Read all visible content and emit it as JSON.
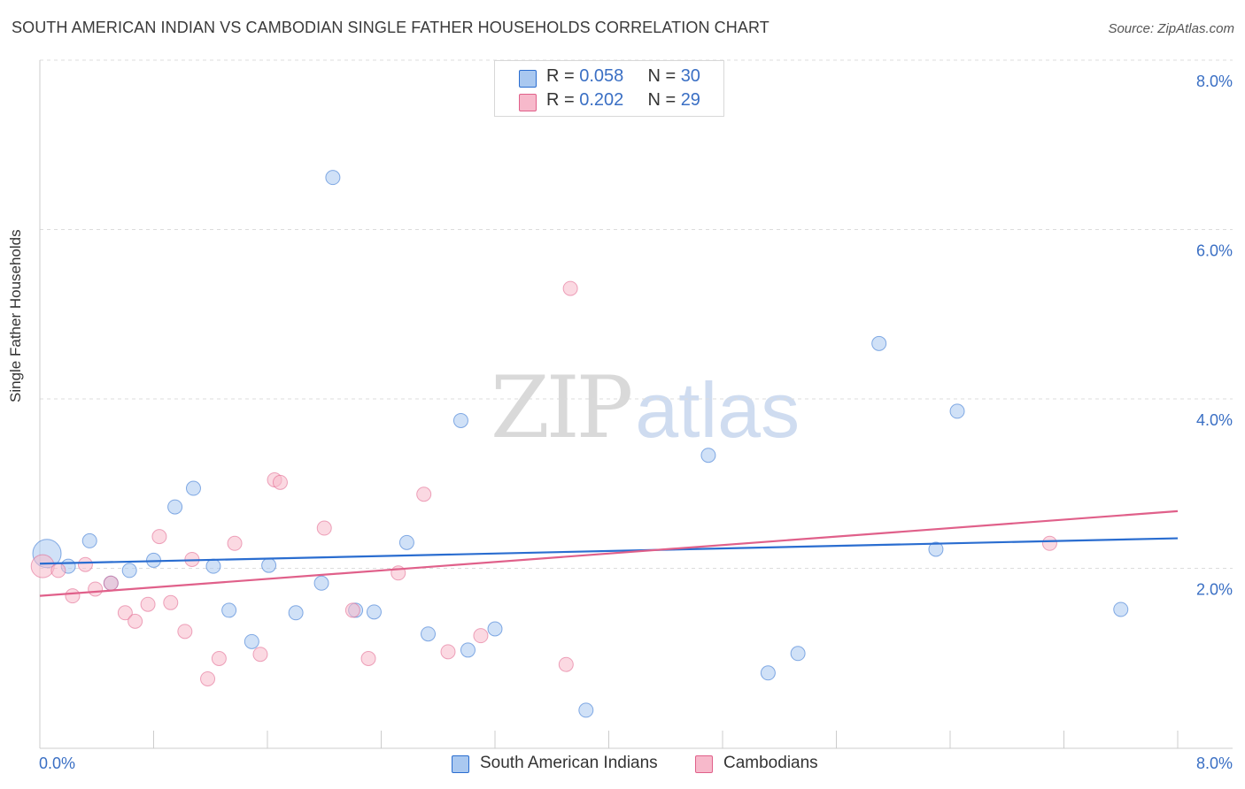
{
  "title": "SOUTH AMERICAN INDIAN VS CAMBODIAN SINGLE FATHER HOUSEHOLDS CORRELATION CHART",
  "source": "Source: ZipAtlas.com",
  "watermark": {
    "part1": "ZIP",
    "part2": "atlas"
  },
  "legend": {
    "rows": [
      {
        "r_label": "R = ",
        "r_value": "0.058",
        "n_label": "N = ",
        "n_value": "30",
        "color": "#a9c8f0"
      },
      {
        "r_label": "R = ",
        "r_value": "0.202",
        "n_label": "N = ",
        "n_value": "29",
        "color": "#f7b9cb"
      }
    ]
  },
  "chart_data": {
    "type": "scatter",
    "title": "SOUTH AMERICAN INDIAN VS CAMBODIAN SINGLE FATHER HOUSEHOLDS CORRELATION CHART",
    "xlabel": "",
    "ylabel": "Single Father Households",
    "xlim": [
      0,
      8
    ],
    "ylim": [
      0,
      8
    ],
    "x_tick_labels": [
      "0.0%",
      "8.0%"
    ],
    "y_ticks": [
      2,
      4,
      6,
      8
    ],
    "y_tick_labels": [
      "2.0%",
      "4.0%",
      "6.0%",
      "8.0%"
    ],
    "grid": "horizontal dashed",
    "legend_position": "top-center and bottom",
    "series": [
      {
        "name": "South American Indians",
        "color": "#a9c8f0",
        "line_color": "#2a6dd0",
        "trend": [
          [
            0,
            2.18
          ],
          [
            8,
            2.48
          ]
        ],
        "points": [
          [
            0.05,
            2.3
          ],
          [
            0.2,
            2.15
          ],
          [
            0.35,
            2.45
          ],
          [
            0.5,
            1.95
          ],
          [
            0.63,
            2.1
          ],
          [
            0.8,
            2.22
          ],
          [
            0.95,
            2.85
          ],
          [
            1.08,
            3.07
          ],
          [
            1.22,
            2.15
          ],
          [
            1.33,
            1.63
          ],
          [
            1.49,
            1.26
          ],
          [
            1.61,
            2.16
          ],
          [
            1.8,
            1.6
          ],
          [
            1.98,
            1.95
          ],
          [
            2.06,
            6.74
          ],
          [
            2.22,
            1.63
          ],
          [
            2.35,
            1.61
          ],
          [
            2.58,
            2.43
          ],
          [
            2.73,
            1.35
          ],
          [
            2.96,
            3.87
          ],
          [
            3.01,
            1.16
          ],
          [
            3.2,
            1.41
          ],
          [
            3.84,
            0.45
          ],
          [
            4.7,
            3.46
          ],
          [
            5.12,
            0.89
          ],
          [
            5.33,
            1.12
          ],
          [
            5.9,
            4.78
          ],
          [
            6.3,
            2.35
          ],
          [
            6.45,
            3.98
          ],
          [
            7.6,
            1.64
          ]
        ]
      },
      {
        "name": "Cambodians",
        "color": "#f7b9cb",
        "line_color": "#e0608a",
        "trend": [
          [
            0,
            1.8
          ],
          [
            8,
            2.8
          ]
        ],
        "points": [
          [
            0.02,
            2.15
          ],
          [
            0.13,
            2.1
          ],
          [
            0.23,
            1.8
          ],
          [
            0.32,
            2.17
          ],
          [
            0.39,
            1.88
          ],
          [
            0.5,
            1.95
          ],
          [
            0.6,
            1.6
          ],
          [
            0.67,
            1.5
          ],
          [
            0.76,
            1.7
          ],
          [
            0.84,
            2.5
          ],
          [
            0.92,
            1.72
          ],
          [
            1.02,
            1.38
          ],
          [
            1.07,
            2.23
          ],
          [
            1.18,
            0.82
          ],
          [
            1.26,
            1.06
          ],
          [
            1.37,
            2.42
          ],
          [
            1.55,
            1.11
          ],
          [
            1.65,
            3.17
          ],
          [
            1.69,
            3.14
          ],
          [
            2.0,
            2.6
          ],
          [
            2.2,
            1.63
          ],
          [
            2.31,
            1.06
          ],
          [
            2.52,
            2.07
          ],
          [
            2.7,
            3.0
          ],
          [
            2.87,
            1.14
          ],
          [
            3.1,
            1.33
          ],
          [
            3.7,
            0.99
          ],
          [
            3.73,
            5.43
          ],
          [
            7.1,
            2.42
          ]
        ]
      }
    ]
  }
}
